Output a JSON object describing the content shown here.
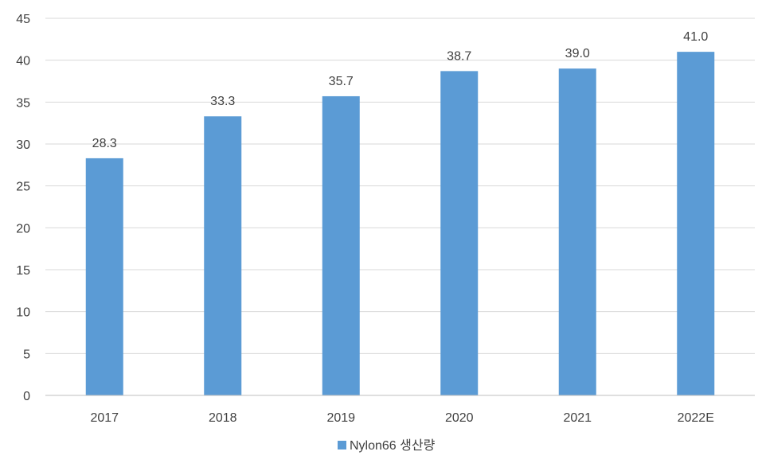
{
  "chart_data": {
    "type": "bar",
    "categories": [
      "2017",
      "2018",
      "2019",
      "2020",
      "2021",
      "2022E"
    ],
    "series": [
      {
        "name": "Nylon66 생산량",
        "values": [
          28.3,
          33.3,
          35.7,
          38.7,
          39.0,
          41.0
        ],
        "value_labels": [
          "28.3",
          "33.3",
          "35.7",
          "38.7",
          "39.0",
          "41.0"
        ]
      }
    ],
    "ylim": [
      0,
      45
    ],
    "yticks": [
      "0",
      "5",
      "10",
      "15",
      "20",
      "25",
      "30",
      "35",
      "40",
      "45"
    ],
    "grid": true,
    "legend_position": "bottom-center",
    "colors": {
      "bar": "#5B9BD5",
      "grid": "#D9D9D9",
      "axis": "#BFBFBF",
      "text": "#404040"
    }
  }
}
